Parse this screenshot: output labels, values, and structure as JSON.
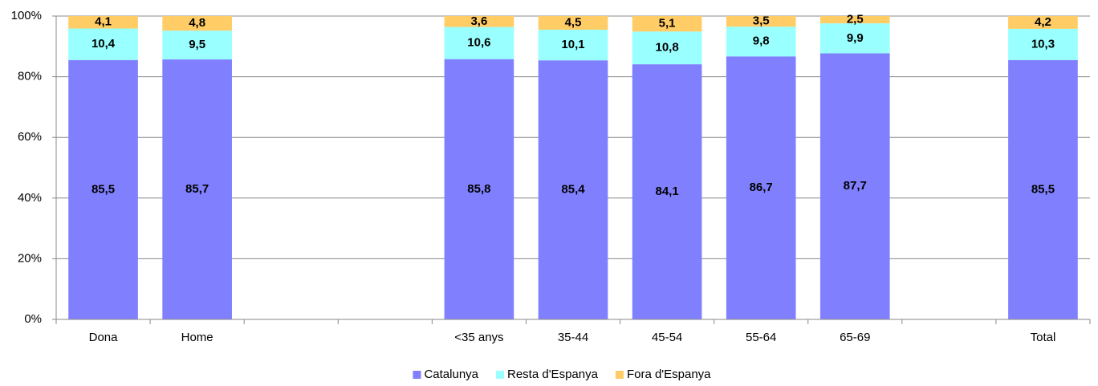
{
  "chart_data": {
    "type": "stacked_bar",
    "categories": [
      "Dona",
      "Home",
      null,
      null,
      "<35 anys",
      "35-44",
      "45-54",
      "55-64",
      "65-69",
      null,
      "Total"
    ],
    "series": [
      {
        "name": "Catalunya",
        "color": "#8080ff",
        "values": [
          85.5,
          85.7,
          null,
          null,
          85.8,
          85.4,
          84.1,
          86.7,
          87.7,
          null,
          85.5
        ],
        "value_labels": [
          "85,5",
          "85,7",
          null,
          null,
          "85,8",
          "85,4",
          "84,1",
          "86,7",
          "87,7",
          null,
          "85,5"
        ]
      },
      {
        "name": "Resta d'Espanya",
        "color": "#99ffff",
        "values": [
          10.4,
          9.5,
          null,
          null,
          10.6,
          10.1,
          10.8,
          9.8,
          9.9,
          null,
          10.3
        ],
        "value_labels": [
          "10,4",
          "9,5",
          null,
          null,
          "10,6",
          "10,1",
          "10,8",
          "9,8",
          "9,9",
          null,
          "10,3"
        ]
      },
      {
        "name": "Fora d'Espanya",
        "color": "#ffcc66",
        "values": [
          4.1,
          4.8,
          null,
          null,
          3.6,
          4.5,
          5.1,
          3.5,
          2.5,
          null,
          4.2
        ],
        "value_labels": [
          "4,1",
          "4,8",
          null,
          null,
          "3,6",
          "4,5",
          "5,1",
          "3,5",
          "2,5",
          null,
          "4,2"
        ]
      }
    ],
    "ylim": [
      0,
      100
    ],
    "yticks": [
      {
        "value": 0,
        "label": "0%"
      },
      {
        "value": 20,
        "label": "20%"
      },
      {
        "value": 40,
        "label": "40%"
      },
      {
        "value": 60,
        "label": "60%"
      },
      {
        "value": 80,
        "label": "80%"
      },
      {
        "value": 100,
        "label": "100%"
      }
    ],
    "grid": true,
    "legend": "bottom"
  }
}
